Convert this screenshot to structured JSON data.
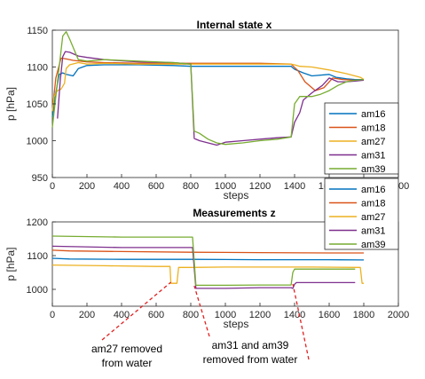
{
  "chart_data": [
    {
      "type": "line",
      "title": "Internal state x",
      "xlabel": "steps",
      "ylabel": "p [hPa]",
      "xlim": [
        0,
        2000
      ],
      "ylim": [
        950,
        1150
      ],
      "xticks": [
        "0",
        "200",
        "400",
        "600",
        "800",
        "1000",
        "1200",
        "1400",
        "1600",
        "1800",
        "2000"
      ],
      "yticks": [
        "950",
        "1000",
        "1050",
        "1100",
        "1150"
      ],
      "legend_position": "right",
      "series": [
        {
          "name": "am16",
          "color": "#0072bd",
          "x": [
            0,
            20,
            40,
            60,
            80,
            120,
            150,
            200,
            300,
            500,
            700,
            800,
            1000,
            1200,
            1380,
            1400,
            1450,
            1500,
            1600,
            1640,
            1700,
            1750,
            1800
          ],
          "y": [
            1032,
            1065,
            1090,
            1092,
            1090,
            1088,
            1098,
            1102,
            1103,
            1103,
            1102,
            1101,
            1101,
            1101,
            1101,
            1097,
            1092,
            1088,
            1090,
            1086,
            1084,
            1083,
            1083
          ]
        },
        {
          "name": "am18",
          "color": "#d95319",
          "x": [
            0,
            20,
            50,
            80,
            120,
            160,
            200,
            300,
            500,
            700,
            800,
            1000,
            1200,
            1380,
            1420,
            1460,
            1520,
            1570,
            1620,
            1680,
            1740,
            1800
          ],
          "y": [
            1040,
            1085,
            1112,
            1111,
            1109,
            1108,
            1107,
            1106,
            1105,
            1105,
            1105,
            1105,
            1105,
            1104,
            1095,
            1080,
            1068,
            1072,
            1085,
            1083,
            1082,
            1082
          ]
        },
        {
          "name": "am27",
          "color": "#edb120",
          "x": [
            0,
            10,
            30,
            50,
            70,
            80,
            100,
            150,
            200,
            300,
            500,
            700,
            800,
            1000,
            1200,
            1380,
            1400,
            1430,
            1500,
            1600,
            1700,
            1780,
            1800
          ],
          "y": [
            1040,
            1060,
            1068,
            1070,
            1078,
            1098,
            1103,
            1106,
            1104,
            1105,
            1104,
            1104,
            1104,
            1104,
            1104,
            1104,
            1103,
            1101,
            1100,
            1096,
            1091,
            1086,
            1083
          ]
        },
        {
          "name": "am31",
          "color": "#7e2f8e",
          "x": [
            30,
            45,
            60,
            75,
            100,
            150,
            200,
            300,
            500,
            700,
            800,
            820,
            850,
            900,
            950,
            1000,
            1100,
            1200,
            1300,
            1380,
            1400,
            1430,
            1450,
            1500,
            1560,
            1600,
            1650,
            1700,
            1750,
            1800
          ],
          "y": [
            1030,
            1080,
            1114,
            1121,
            1120,
            1115,
            1113,
            1110,
            1107,
            1106,
            1104,
            1003,
            1000,
            997,
            994,
            998,
            1000,
            1002,
            1004,
            1005,
            1025,
            1038,
            1055,
            1065,
            1075,
            1085,
            1080,
            1080,
            1081,
            1082
          ]
        },
        {
          "name": "am39",
          "color": "#77ac30",
          "x": [
            0,
            30,
            60,
            80,
            100,
            150,
            200,
            300,
            500,
            700,
            800,
            820,
            850,
            900,
            950,
            1000,
            1100,
            1200,
            1300,
            1380,
            1400,
            1430,
            1470,
            1500,
            1550,
            1600,
            1650,
            1700,
            1750,
            1800
          ],
          "y": [
            1018,
            1080,
            1142,
            1148,
            1138,
            1110,
            1108,
            1110,
            1108,
            1106,
            1104,
            1013,
            1010,
            1002,
            997,
            995,
            997,
            1000,
            1002,
            1005,
            1050,
            1060,
            1060,
            1060,
            1063,
            1068,
            1075,
            1080,
            1082,
            1083
          ]
        }
      ]
    },
    {
      "type": "line",
      "title": "Measurements z",
      "xlabel": "steps",
      "ylabel": "p [hPa]",
      "xlim": [
        0,
        2000
      ],
      "ylim": [
        950,
        1200
      ],
      "xticks": [
        "0",
        "200",
        "400",
        "600",
        "800",
        "1000",
        "1200",
        "1400",
        "1600",
        "1800",
        "2000"
      ],
      "yticks": [
        "1000",
        "1100",
        "1200"
      ],
      "legend_position": "top-right",
      "series": [
        {
          "name": "am16",
          "color": "#0072bd",
          "x": [
            0,
            100,
            400,
            800,
            1200,
            1600,
            1800
          ],
          "y": [
            1092,
            1090,
            1089,
            1089,
            1088,
            1088,
            1087
          ]
        },
        {
          "name": "am18",
          "color": "#d95319",
          "x": [
            0,
            100,
            400,
            800,
            1200,
            1600,
            1800
          ],
          "y": [
            1116,
            1114,
            1112,
            1110,
            1109,
            1108,
            1108
          ]
        },
        {
          "name": "am27",
          "color": "#edb120",
          "x": [
            0,
            300,
            600,
            680,
            685,
            700,
            720,
            730,
            800,
            1000,
            1200,
            1400,
            1500,
            1780,
            1790,
            1800
          ],
          "y": [
            1072,
            1070,
            1068,
            1068,
            1018,
            1018,
            1018,
            1065,
            1065,
            1066,
            1066,
            1066,
            1066,
            1065,
            1018,
            1018
          ]
        },
        {
          "name": "am31",
          "color": "#7e2f8e",
          "x": [
            0,
            400,
            810,
            830,
            1000,
            1200,
            1380,
            1390,
            1400,
            1410,
            1500,
            1750
          ],
          "y": [
            1128,
            1124,
            1124,
            1003,
            1003,
            1005,
            1005,
            1003,
            1015,
            1020,
            1020,
            1020
          ]
        },
        {
          "name": "am39",
          "color": "#77ac30",
          "x": [
            0,
            400,
            810,
            830,
            1000,
            1200,
            1380,
            1390,
            1400,
            1410,
            1500,
            1750
          ],
          "y": [
            1158,
            1155,
            1155,
            1012,
            1012,
            1013,
            1013,
            1050,
            1060,
            1060,
            1060,
            1060
          ]
        }
      ]
    }
  ],
  "annotations": [
    {
      "id": "am27",
      "text_lines": [
        "am27 removed",
        "from water"
      ],
      "target_steps": [
        685
      ]
    },
    {
      "id": "am31-am39",
      "text_lines": [
        "am31 and am39",
        "removed from water"
      ],
      "target_steps": [
        820,
        1390
      ]
    }
  ]
}
